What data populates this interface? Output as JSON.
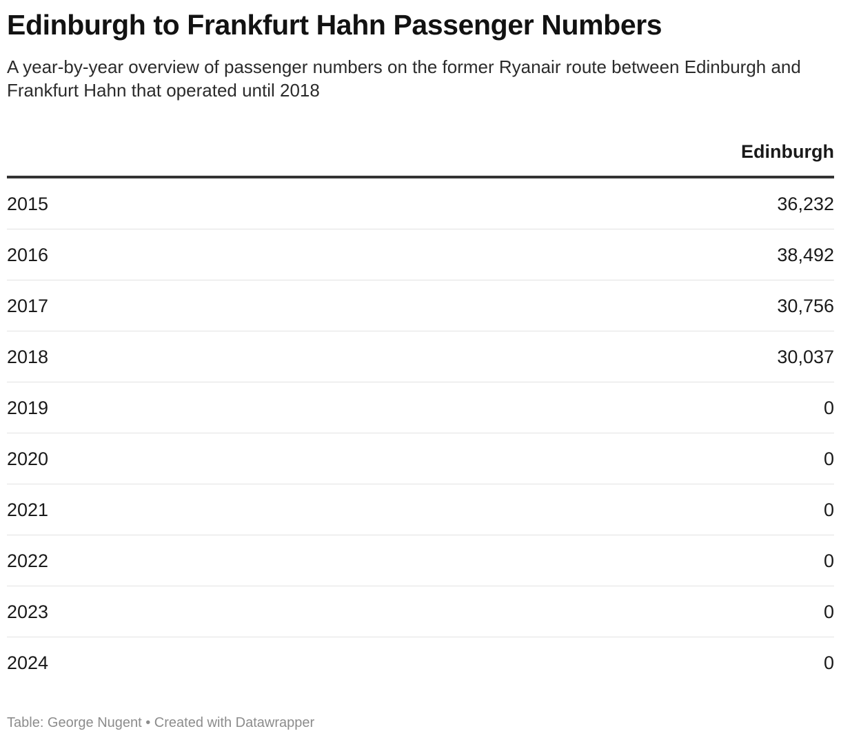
{
  "title": "Edinburgh to Frankfurt Hahn Passenger Numbers",
  "subtitle": "A year-by-year overview of passenger numbers on the former Ryanair route between Edinburgh and Frankfurt Hahn that operated until 2018",
  "footer": "Table: George Nugent • Created with Datawrapper",
  "chart_data": {
    "type": "table",
    "title": "Edinburgh to Frankfurt Hahn Passenger Numbers",
    "columns": [
      "",
      "Edinburgh"
    ],
    "rows": [
      {
        "year": "2015",
        "value": "36,232"
      },
      {
        "year": "2016",
        "value": "38,492"
      },
      {
        "year": "2017",
        "value": "30,756"
      },
      {
        "year": "2018",
        "value": "30,037"
      },
      {
        "year": "2019",
        "value": "0"
      },
      {
        "year": "2020",
        "value": "0"
      },
      {
        "year": "2021",
        "value": "0"
      },
      {
        "year": "2022",
        "value": "0"
      },
      {
        "year": "2023",
        "value": "0"
      },
      {
        "year": "2024",
        "value": "0"
      }
    ]
  }
}
